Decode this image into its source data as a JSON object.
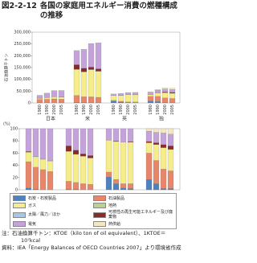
{
  "figure_number": "図2-2-12",
  "title": "各国の家庭用エネルギー消費の燃種構成の推移",
  "notes": [
    "注：石油換算千トン：KTOE（kilo ton of oil equivalent）、1KTOE＝10⁷kcal",
    "資料：IEA「Energy Balances of OECD Countries 2007」より環境省作成"
  ],
  "chart_data": [
    {
      "type": "bar",
      "stacked": true,
      "y_label": "石油換算千トン",
      "groups": [
        "日本",
        "米",
        "英",
        "独"
      ],
      "categories": [
        "1980",
        "1990",
        "2000",
        "2005",
        "1980",
        "1990",
        "2000",
        "2005",
        "1980",
        "1990",
        "2000",
        "2005",
        "1980",
        "1990",
        "2000",
        "2005"
      ],
      "ylim": [
        0,
        300000
      ],
      "yticks": [
        0,
        {
          "value": 50000,
          "label": "50,000"
        },
        {
          "value": 100000,
          "label": "100,000"
        },
        {
          "value": 150000,
          "label": "150,000"
        },
        {
          "value": 200000,
          "label": "200,000"
        },
        {
          "value": 250000,
          "label": "250,000"
        },
        {
          "value": 300000,
          "label": "300,000"
        }
      ],
      "series": [
        {
          "name": "石炭・石炭製品",
          "color": "#4f81bd",
          "values": [
            1000,
            500,
            200,
            100,
            2000,
            1500,
            1000,
            800,
            8000,
            4000,
            1500,
            800,
            8000,
            6000,
            1500,
            1000
          ]
        },
        {
          "name": "石油製品",
          "color": "#e8866a",
          "values": [
            14000,
            15000,
            17000,
            16000,
            30000,
            25000,
            25000,
            23000,
            3000,
            3000,
            3000,
            3500,
            20000,
            22000,
            20000,
            18000
          ]
        },
        {
          "name": "ガス",
          "color": "#f5ec8a",
          "values": [
            5000,
            7000,
            9000,
            9000,
            110000,
            105000,
            115000,
            110000,
            20000,
            25000,
            30000,
            30000,
            8000,
            15000,
            22000,
            22000
          ]
        },
        {
          "name": "地熱",
          "color": "#b9d38c",
          "values": [
            0,
            0,
            0,
            0,
            0,
            200,
            300,
            300,
            0,
            0,
            0,
            0,
            0,
            0,
            0,
            0
          ]
        },
        {
          "name": "太陽／風力／ほか",
          "color": "#a6c8e6",
          "values": [
            300,
            400,
            300,
            300,
            0,
            500,
            600,
            700,
            0,
            0,
            0,
            0,
            0,
            0,
            100,
            200
          ]
        },
        {
          "name": "可燃性の再生可能エネルギー及び廃棄物",
          "color": "#8b2a2a",
          "values": [
            200,
            150,
            100,
            100,
            20000,
            15000,
            10000,
            10000,
            100,
            200,
            200,
            300,
            1000,
            1500,
            3000,
            4000
          ]
        },
        {
          "name": "電気",
          "color": "#c3a3d9",
          "values": [
            12000,
            18000,
            25000,
            27000,
            60000,
            80000,
            100000,
            110000,
            7000,
            8000,
            9500,
            10000,
            8000,
            10000,
            12000,
            12000
          ]
        },
        {
          "name": "熱供給",
          "color": "#f3e7c4",
          "values": [
            0,
            100,
            100,
            100,
            0,
            0,
            0,
            0,
            0,
            0,
            0,
            0,
            2000,
            3000,
            5000,
            5000
          ]
        }
      ]
    },
    {
      "type": "bar",
      "stacked": true,
      "y_label": "(%)",
      "ylim": [
        0,
        100
      ],
      "yticks": [
        0,
        20,
        40,
        60,
        80,
        100
      ],
      "series": [
        {
          "color": "#4f81bd",
          "values": [
            3,
            1,
            0,
            0,
            1,
            1,
            0,
            0,
            21,
            10,
            3,
            2,
            17,
            10,
            2,
            2
          ]
        },
        {
          "color": "#e8866a",
          "values": [
            43,
            36,
            33,
            30,
            13,
            11,
            10,
            9,
            8,
            7,
            7,
            8,
            43,
            38,
            32,
            29
          ]
        },
        {
          "color": "#f5ec8a",
          "values": [
            15,
            17,
            17,
            17,
            49,
            46,
            45,
            43,
            52,
            62,
            68,
            68,
            17,
            26,
            35,
            35
          ]
        },
        {
          "color": "#b9d38c",
          "values": [
            0,
            0,
            0,
            0,
            0,
            0,
            0,
            0,
            0,
            0,
            0,
            0,
            0,
            0,
            0,
            0
          ]
        },
        {
          "color": "#a6c8e6",
          "values": [
            1,
            1,
            1,
            1,
            0,
            0,
            0,
            0,
            0,
            0,
            0,
            0,
            0,
            0,
            0,
            0
          ]
        },
        {
          "color": "#8b2a2a",
          "values": [
            1,
            0,
            0,
            0,
            9,
            7,
            4,
            4,
            0,
            1,
            0,
            1,
            2,
            3,
            5,
            6
          ]
        },
        {
          "color": "#c3a3d9",
          "values": [
            37,
            45,
            49,
            52,
            28,
            35,
            41,
            44,
            19,
            20,
            22,
            21,
            17,
            17,
            19,
            19
          ]
        },
        {
          "color": "#f3e7c4",
          "values": [
            0,
            0,
            0,
            0,
            0,
            0,
            0,
            0,
            0,
            0,
            0,
            0,
            4,
            6,
            7,
            9
          ]
        }
      ]
    }
  ]
}
